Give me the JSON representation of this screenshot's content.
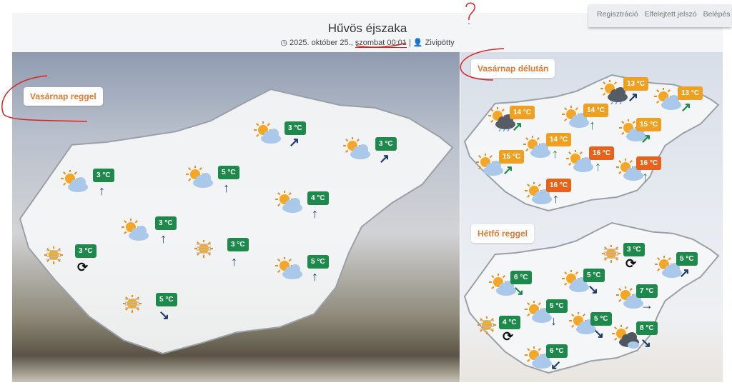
{
  "topnav": {
    "items": [
      "Regisztráció",
      "Elfelejtett jelszó",
      "Belépés"
    ]
  },
  "header": {
    "title": "Hűvös éjszaka",
    "date": "2025. október 25., ",
    "day_time": "szombat 00:01",
    "separator": " | ",
    "author": "Zivipötty",
    "clock_icon": "clock-icon",
    "user_icon": "user-icon"
  },
  "colors": {
    "green": "#1d8a4c",
    "orange": "#efa020",
    "darkorange": "#e8621c",
    "navy": "#1f3e6e",
    "arrow_green": "#1d8a4c",
    "label": "#e07a30"
  },
  "maps": [
    {
      "label": "Vasárnap reggel",
      "stations": [
        {
          "icon": "sun-cloud",
          "temp": "3 °C",
          "color": "green",
          "arrow": "up",
          "arrow_color": "navy"
        },
        {
          "icon": "sun-cloud",
          "temp": "5 °C",
          "color": "green",
          "arrow": "up",
          "arrow_color": "navy"
        },
        {
          "icon": "sun-cloud",
          "temp": "3 °C",
          "color": "green",
          "arrow": "ne",
          "arrow_color": "navy"
        },
        {
          "icon": "sun-cloud",
          "temp": "3 °C",
          "color": "green",
          "arrow": "ne",
          "arrow_color": "navy"
        },
        {
          "icon": "sun-cloud",
          "temp": "4 °C",
          "color": "green",
          "arrow": "up",
          "arrow_color": "navy"
        },
        {
          "icon": "sun-cloud",
          "temp": "3 °C",
          "color": "green",
          "arrow": "up",
          "arrow_color": "navy"
        },
        {
          "icon": "haze",
          "temp": "3 °C",
          "color": "green",
          "arrow": "variable",
          "arrow_color": "black"
        },
        {
          "icon": "haze",
          "temp": "3 °C",
          "color": "green",
          "arrow": "up",
          "arrow_color": "navy"
        },
        {
          "icon": "sun-cloud",
          "temp": "5 °C",
          "color": "green",
          "arrow": "up",
          "arrow_color": "navy"
        },
        {
          "icon": "haze",
          "temp": "5 °C",
          "color": "green",
          "arrow": "se",
          "arrow_color": "navy"
        }
      ]
    },
    {
      "label": "Vasárnap délután",
      "stations": [
        {
          "icon": "rain-cloud",
          "temp": "14 °C",
          "color": "orange",
          "arrow": "ne",
          "arrow_color": "green"
        },
        {
          "icon": "sun-cloud",
          "temp": "14 °C",
          "color": "orange",
          "arrow": "up",
          "arrow_color": "green"
        },
        {
          "icon": "rain-cloud",
          "temp": "13 °C",
          "color": "orange",
          "arrow": "ne",
          "arrow_color": "navy"
        },
        {
          "icon": "sun-cloud",
          "temp": "13 °C",
          "color": "orange",
          "arrow": "ne",
          "arrow_color": "green"
        },
        {
          "icon": "sun-cloud",
          "temp": "14 °C",
          "color": "orange",
          "arrow": "up",
          "arrow_color": "green"
        },
        {
          "icon": "sun-cloud",
          "temp": "15 °C",
          "color": "orange",
          "arrow": "ne",
          "arrow_color": "green"
        },
        {
          "icon": "sun-cloud",
          "temp": "16 °C",
          "color": "darkorange",
          "arrow": "up",
          "arrow_color": "green"
        },
        {
          "icon": "sun-cloud",
          "temp": "15 °C",
          "color": "orange",
          "arrow": "ne",
          "arrow_color": "green"
        },
        {
          "icon": "sun-cloud",
          "temp": "16 °C",
          "color": "darkorange",
          "arrow": "up",
          "arrow_color": "green"
        },
        {
          "icon": "sun-cloud",
          "temp": "16 °C",
          "color": "darkorange",
          "arrow": "up",
          "arrow_color": "navy"
        }
      ]
    },
    {
      "label": "Hétfő reggel",
      "stations": [
        {
          "icon": "haze",
          "temp": "3 °C",
          "color": "green",
          "arrow": "variable",
          "arrow_color": "black"
        },
        {
          "icon": "sun-cloud",
          "temp": "5 °C",
          "color": "green",
          "arrow": "ne",
          "arrow_color": "navy"
        },
        {
          "icon": "sun-cloud",
          "temp": "6 °C",
          "color": "green",
          "arrow": "se",
          "arrow_color": "green"
        },
        {
          "icon": "sun-cloud",
          "temp": "5 °C",
          "color": "green",
          "arrow": "se",
          "arrow_color": "navy"
        },
        {
          "icon": "sun-cloud",
          "temp": "7 °C",
          "color": "green",
          "arrow": "right",
          "arrow_color": "navy"
        },
        {
          "icon": "sun-cloud",
          "temp": "5 °C",
          "color": "green",
          "arrow": "down",
          "arrow_color": "navy"
        },
        {
          "icon": "haze",
          "temp": "4 °C",
          "color": "green",
          "arrow": "variable",
          "arrow_color": "black"
        },
        {
          "icon": "sun-cloud",
          "temp": "5 °C",
          "color": "green",
          "arrow": "se",
          "arrow_color": "navy"
        },
        {
          "icon": "storm-cloud",
          "temp": "8 °C",
          "color": "green",
          "arrow": "se",
          "arrow_color": "navy"
        },
        {
          "icon": "sun-cloud",
          "temp": "6 °C",
          "color": "green",
          "arrow": "sw",
          "arrow_color": "navy"
        }
      ]
    }
  ]
}
